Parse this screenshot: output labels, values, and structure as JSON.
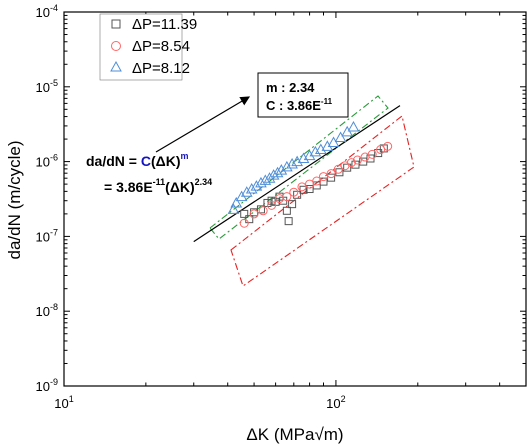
{
  "chart_data": {
    "type": "scatter",
    "xscale": "log",
    "yscale": "log",
    "xlim": [
      10,
      500
    ],
    "ylim": [
      1e-09,
      0.0001
    ],
    "xlabel": "ΔK (MPa√m)",
    "ylabel": "da/dN (m/cycle)",
    "x_tick_labels": [
      {
        "v": 10,
        "base": "10",
        "exp": "1"
      },
      {
        "v": 100,
        "base": "10",
        "exp": "2"
      }
    ],
    "y_tick_labels": [
      {
        "v": 1e-09,
        "base": "10",
        "exp": "-9"
      },
      {
        "v": 1e-08,
        "base": "10",
        "exp": "-8"
      },
      {
        "v": 1e-07,
        "base": "10",
        "exp": "-7"
      },
      {
        "v": 1e-06,
        "base": "10",
        "exp": "-6"
      },
      {
        "v": 1e-05,
        "base": "10",
        "exp": "-5"
      },
      {
        "v": 0.0001,
        "base": "10",
        "exp": "-4"
      }
    ],
    "legend_position": "top-left",
    "series": [
      {
        "name": "ΔP=11.39",
        "marker": "square",
        "color": "#555555",
        "points": [
          [
            46,
            2e-07
          ],
          [
            48,
            1.7e-07
          ],
          [
            50,
            2.1e-07
          ],
          [
            53,
            2.3e-07
          ],
          [
            56,
            2.8e-07
          ],
          [
            58,
            3e-07
          ],
          [
            60,
            2.9e-07
          ],
          [
            62,
            3.4e-07
          ],
          [
            64,
            3e-07
          ],
          [
            66,
            2.2e-07
          ],
          [
            67,
            1.6e-07
          ],
          [
            69,
            2.7e-07
          ],
          [
            72,
            3.6e-07
          ],
          [
            76,
            4.2e-07
          ],
          [
            80,
            4.3e-07
          ],
          [
            85,
            4.8e-07
          ],
          [
            90,
            5.4e-07
          ],
          [
            96,
            6.1e-07
          ],
          [
            103,
            7.2e-07
          ],
          [
            110,
            8.3e-07
          ],
          [
            118,
            9.1e-07
          ],
          [
            126,
            1e-06
          ],
          [
            134,
            1.1e-06
          ],
          [
            143,
            1.3e-06
          ],
          [
            150,
            1.5e-06
          ]
        ]
      },
      {
        "name": "ΔP=8.54",
        "marker": "circle",
        "color": "#ff6666",
        "points": [
          [
            46,
            1.5e-07
          ],
          [
            50,
            2e-07
          ],
          [
            54,
            2.2e-07
          ],
          [
            58,
            2.6e-07
          ],
          [
            62,
            3.2e-07
          ],
          [
            66,
            3.4e-07
          ],
          [
            70,
            3.9e-07
          ],
          [
            75,
            4.6e-07
          ],
          [
            80,
            5e-07
          ],
          [
            85,
            5.5e-07
          ],
          [
            90,
            6.3e-07
          ],
          [
            96,
            6.9e-07
          ],
          [
            102,
            7.9e-07
          ],
          [
            108,
            8.8e-07
          ],
          [
            114,
            9.7e-07
          ],
          [
            120,
            1.05e-06
          ],
          [
            128,
            1.15e-06
          ],
          [
            136,
            1.25e-06
          ],
          [
            146,
            1.45e-06
          ],
          [
            155,
            1.6e-06
          ]
        ]
      },
      {
        "name": "ΔP=8.12",
        "marker": "triangle",
        "color": "#4f8ed8",
        "points": [
          [
            42,
            2.3e-07
          ],
          [
            43,
            2.8e-07
          ],
          [
            45,
            3.4e-07
          ],
          [
            47,
            3.9e-07
          ],
          [
            49,
            4.3e-07
          ],
          [
            51,
            4.7e-07
          ],
          [
            53,
            5.2e-07
          ],
          [
            55,
            5.6e-07
          ],
          [
            57,
            6e-07
          ],
          [
            59,
            6.6e-07
          ],
          [
            61,
            7.1e-07
          ],
          [
            63,
            7.7e-07
          ],
          [
            66,
            8.5e-07
          ],
          [
            69,
            9.3e-07
          ],
          [
            72,
            1e-06
          ],
          [
            76,
            1.1e-06
          ],
          [
            80,
            1.2e-06
          ],
          [
            84,
            1.35e-06
          ],
          [
            88,
            1.45e-06
          ],
          [
            93,
            1.6e-06
          ],
          [
            98,
            1.8e-06
          ],
          [
            104,
            2.1e-06
          ],
          [
            110,
            2.5e-06
          ],
          [
            116,
            2.9e-06
          ]
        ]
      }
    ],
    "fit_line": {
      "x": [
        30,
        172
      ],
      "y": [
        8.5e-08,
        5.6e-06
      ],
      "color": "#000000"
    },
    "fit_box": {
      "m_label": "m : 2.34",
      "c_label": "C : 3.86E",
      "c_exp": "-11"
    },
    "equation": {
      "line1_prefix": "da/dN = ",
      "line1_c": "C",
      "line1_mid": "(ΔK)",
      "line1_m": "m",
      "line1_c_color": "#1515c0",
      "line1_m_color": "#1515c0",
      "line2_prefix": "= 3.86E",
      "line2_exp1": "-11",
      "line2_mid": "(ΔK)",
      "line2_exp2": "2.34"
    },
    "colors": {
      "green_bound": "#2a9a3a",
      "red_bound": "#e52222"
    }
  }
}
